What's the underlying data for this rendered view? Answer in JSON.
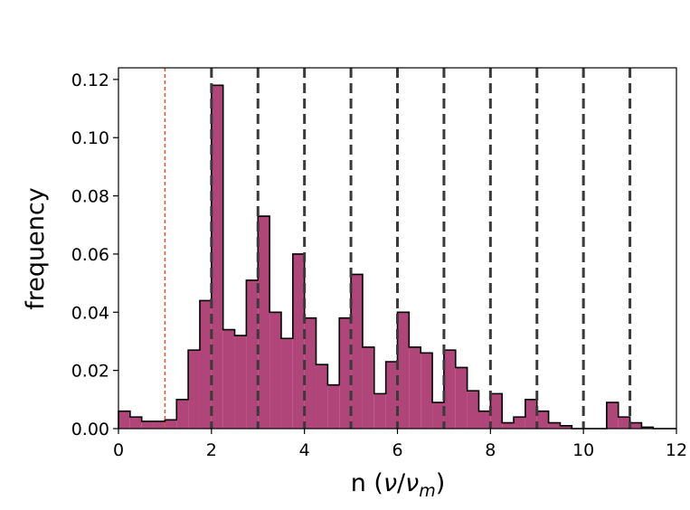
{
  "chart_data": {
    "type": "histogram",
    "xlabel_main": "n (",
    "xlabel_nu": "ν",
    "xlabel_slash": "/",
    "xlabel_nu2": "ν",
    "xlabel_sub": "m",
    "xlabel_close": ")",
    "ylabel": "frequency",
    "xlim": [
      0,
      12
    ],
    "ylim": [
      0,
      0.124
    ],
    "xticks": [
      "0",
      "2",
      "4",
      "6",
      "8",
      "10",
      "12"
    ],
    "yticks": [
      "0.00",
      "0.02",
      "0.04",
      "0.06",
      "0.08",
      "0.10",
      "0.12"
    ],
    "xtick_values": [
      0,
      2,
      4,
      6,
      8,
      10,
      12
    ],
    "ytick_values": [
      0,
      0.02,
      0.04,
      0.06,
      0.08,
      0.1,
      0.12
    ],
    "bin_edges": [
      0,
      0.25,
      0.5,
      0.75,
      1.0,
      1.25,
      1.5,
      1.75,
      2.0,
      2.25,
      2.5,
      2.75,
      3.0,
      3.25,
      3.5,
      3.75,
      4.0,
      4.25,
      4.5,
      4.75,
      5.0,
      5.25,
      5.5,
      5.75,
      6.0,
      6.25,
      6.5,
      6.75,
      7.0,
      7.25,
      7.5,
      7.75,
      8.0,
      8.25,
      8.5,
      8.75,
      9.0,
      9.25,
      9.5,
      9.75,
      10.0,
      10.25,
      10.5,
      10.75,
      11.0,
      11.25,
      11.5,
      11.75,
      12.0
    ],
    "frequencies": [
      0.006,
      0.004,
      0.0025,
      0.0025,
      0.003,
      0.01,
      0.027,
      0.044,
      0.118,
      0.034,
      0.032,
      0.051,
      0.073,
      0.04,
      0.031,
      0.06,
      0.038,
      0.022,
      0.015,
      0.038,
      0.053,
      0.028,
      0.012,
      0.023,
      0.04,
      0.028,
      0.026,
      0.009,
      0.027,
      0.021,
      0.013,
      0.006,
      0.012,
      0.002,
      0.004,
      0.01,
      0.006,
      0.002,
      0.001,
      0.0,
      0.0,
      0.0,
      0.009,
      0.004,
      0.002,
      0.0005,
      0.0,
      0.0
    ],
    "harmonic_lines": [
      2,
      3,
      4,
      5,
      6,
      7,
      8,
      9,
      10,
      11
    ],
    "fundamental_line": 1,
    "colors": {
      "bar_fill": "#b0457a",
      "bar_edge": "#000000",
      "harmonic_line": "#3a3a3a",
      "fundamental_line": "#e05030"
    }
  }
}
